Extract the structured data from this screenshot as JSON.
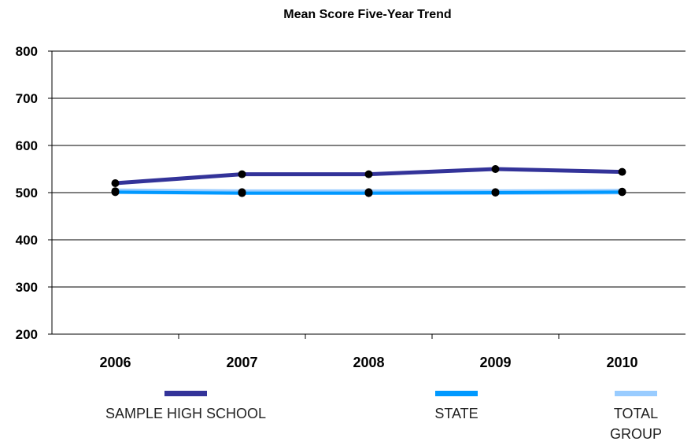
{
  "chart_data": {
    "type": "line",
    "title": "Mean Score Five-Year Trend",
    "xlabel": "",
    "ylabel": "",
    "categories": [
      "2006",
      "2007",
      "2008",
      "2009",
      "2010"
    ],
    "ylim": [
      200,
      800
    ],
    "yticks": [
      "800",
      "700",
      "600",
      "500",
      "400",
      "300",
      "200"
    ],
    "grid": true,
    "legend_position": "bottom",
    "series": [
      {
        "name": "SAMPLE HIGH SCHOOL",
        "color": "#333399",
        "values": [
          520,
          539,
          539,
          550,
          544
        ]
      },
      {
        "name": "STATE",
        "color": "#0099ff",
        "values": [
          501,
          499,
          499,
          500,
          501
        ]
      },
      {
        "name": "TOTAL GROUP",
        "color": "#99ccff",
        "values": [
          503,
          501,
          501,
          501,
          502
        ]
      }
    ]
  },
  "legend": {
    "items": [
      {
        "label_line1": "SAMPLE HIGH SCHOOL",
        "label_line2": ""
      },
      {
        "label_line1": "STATE",
        "label_line2": ""
      },
      {
        "label_line1": "TOTAL",
        "label_line2": "GROUP"
      }
    ]
  }
}
